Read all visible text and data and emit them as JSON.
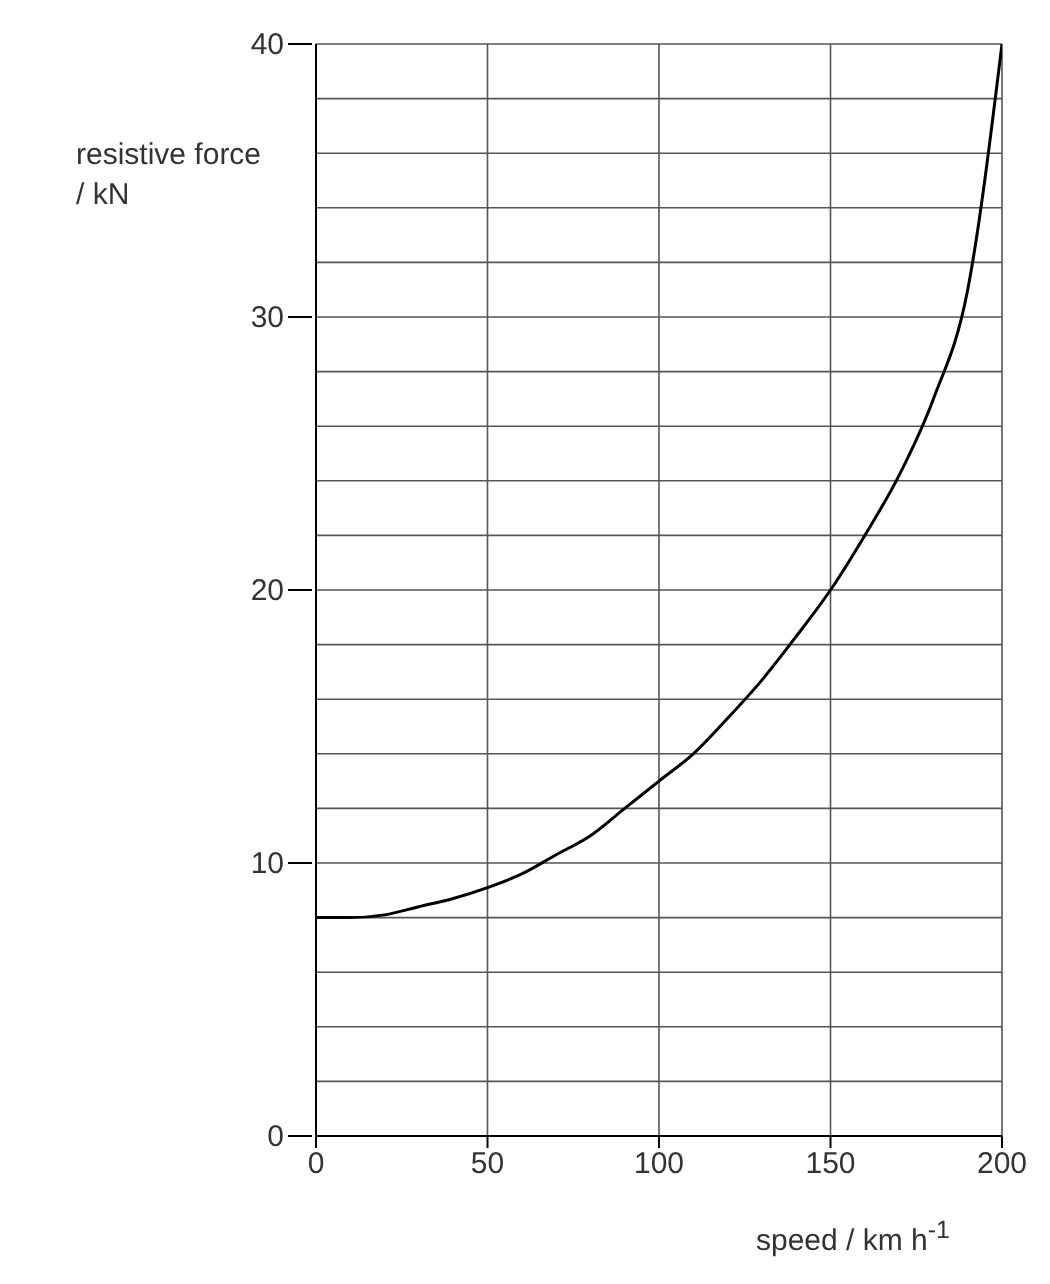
{
  "chart_data": {
    "type": "line",
    "xlabel": "speed / km h$^{-1}$",
    "ylabel": "resistive force\n/ kN",
    "x": [
      0,
      10,
      20,
      30,
      40,
      50,
      60,
      70,
      80,
      90,
      100,
      110,
      120,
      130,
      140,
      150,
      160,
      170,
      180,
      190,
      200
    ],
    "series": [
      {
        "color": "#000000",
        "values": [
          8,
          8,
          8.1,
          8.4,
          8.7,
          9.1,
          9.6,
          10.3,
          11,
          12,
          13,
          14,
          15.3,
          16.7,
          18.3,
          20,
          22,
          24.2,
          27,
          31,
          40
        ]
      }
    ],
    "xlim": [
      0,
      200
    ],
    "xticks": [
      0,
      50,
      100,
      150,
      200
    ],
    "ylim": [
      0,
      40
    ],
    "yticks": [
      0,
      {
        "value": 2,
        "label": null
      },
      {
        "value": 4,
        "label": null
      },
      {
        "value": 6,
        "label": null
      },
      {
        "value": 8,
        "label": null
      },
      10,
      {
        "value": 12,
        "label": null
      },
      {
        "value": 14,
        "label": null
      },
      {
        "value": 16,
        "label": null
      },
      {
        "value": 18,
        "label": null
      },
      20,
      {
        "value": 22,
        "label": null
      },
      {
        "value": 24,
        "label": null
      },
      {
        "value": 26,
        "label": null
      },
      {
        "value": 28,
        "label": null
      },
      30,
      {
        "value": 32,
        "label": null
      },
      {
        "value": 34,
        "label": null
      },
      {
        "value": 36,
        "label": null
      },
      {
        "value": 38,
        "label": null
      },
      40
    ],
    "grid": true,
    "marker": "none",
    "line_style": "solid"
  }
}
